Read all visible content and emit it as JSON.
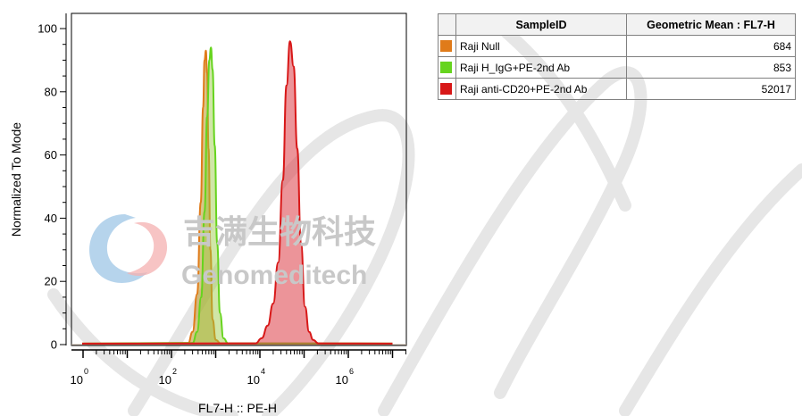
{
  "chart_data": {
    "type": "area",
    "subtype": "flow-cytometry-histogram",
    "x_scale": "log",
    "xlabel": "FL7-H :: PE-H",
    "ylabel": "Normalized To Mode",
    "xlim": [
      1,
      10000000
    ],
    "ylim": [
      0,
      100
    ],
    "x_ticks": [
      {
        "base": "10",
        "exp": "0",
        "value": 1
      },
      {
        "base": "10",
        "exp": "2",
        "value": 100
      },
      {
        "base": "10",
        "exp": "4",
        "value": 10000
      },
      {
        "base": "10",
        "exp": "6",
        "value": 1000000
      }
    ],
    "y_ticks": [
      "0",
      "20",
      "40",
      "60",
      "80",
      "100"
    ],
    "series": [
      {
        "name": "Raji Null",
        "color": "#e07b1a",
        "fill": "rgba(185,150,40,0.55)",
        "peak_x": 600,
        "peak_y": 93,
        "x": [
          1,
          240,
          300,
          380,
          460,
          520,
          560,
          600,
          640,
          690,
          760,
          850,
          1000,
          1300,
          10000000
        ],
        "y": [
          0.3,
          0.5,
          4,
          16,
          45,
          75,
          90,
          93,
          86,
          62,
          30,
          8,
          1.5,
          0.4,
          0.3
        ]
      },
      {
        "name": "Raji H_IgG+PE-2nd Ab",
        "color": "#66d41e",
        "fill": "rgba(150,200,60,0.45)",
        "peak_x": 780,
        "peak_y": 94,
        "x": [
          1,
          300,
          380,
          470,
          560,
          640,
          720,
          780,
          850,
          950,
          1080,
          1250,
          1500,
          1900,
          10000000
        ],
        "y": [
          0.3,
          0.5,
          4,
          15,
          42,
          72,
          90,
          94,
          87,
          63,
          32,
          10,
          2,
          0.4,
          0.3
        ]
      },
      {
        "name": "Raji anti-CD20+PE-2nd Ab",
        "color": "#d81818",
        "fill": "rgba(220,60,70,0.55)",
        "peak_x": 48000,
        "peak_y": 96,
        "x": [
          1,
          8000,
          11000,
          15000,
          20000,
          26000,
          33000,
          40000,
          48000,
          58000,
          70000,
          85000,
          105000,
          130000,
          160000,
          210000,
          10000000
        ],
        "y": [
          0.3,
          0.4,
          2,
          6,
          13,
          26,
          52,
          82,
          96,
          88,
          62,
          32,
          12,
          4,
          1.5,
          0.4,
          0.3
        ]
      }
    ]
  },
  "legend_table": {
    "headers": [
      "SampleID",
      "Geometric Mean : FL7-H"
    ],
    "rows": [
      {
        "swatch": "#e07b1a",
        "name": "Raji Null",
        "value": "684"
      },
      {
        "swatch": "#66d41e",
        "name": "Raji H_IgG+PE-2nd Ab",
        "value": "853"
      },
      {
        "swatch": "#d81818",
        "name": "Raji anti-CD20+PE-2nd Ab",
        "value": "52017"
      }
    ]
  },
  "watermark": {
    "cn": "吉满生物科技",
    "en": "Genomeditech",
    "text_color": "#c8c8c8",
    "logo_colors": [
      "#7fb3dc",
      "#f29a9a"
    ]
  }
}
